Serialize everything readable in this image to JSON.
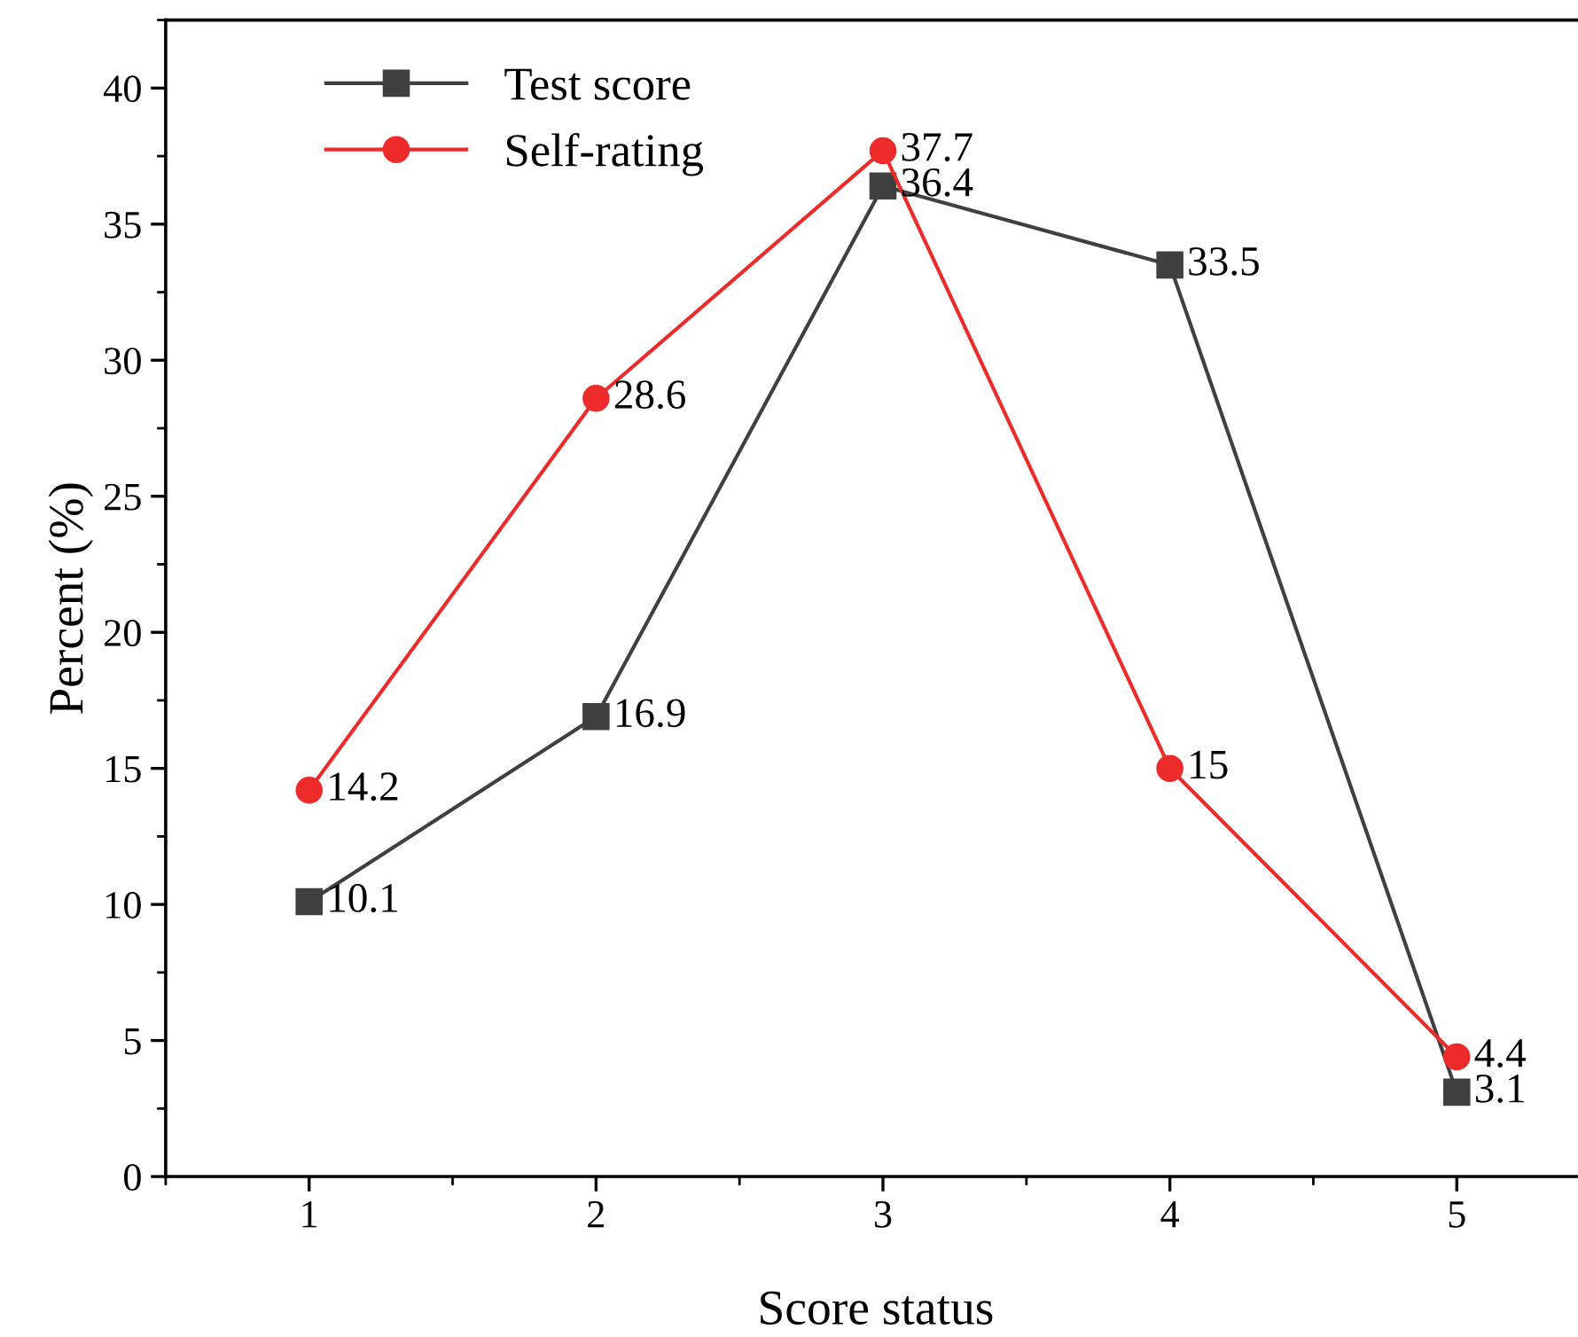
{
  "chart_data": {
    "type": "line",
    "xlabel": "Score status",
    "ylabel": "Percent (%)",
    "x": [
      1,
      2,
      3,
      4,
      5
    ],
    "series": [
      {
        "name": "Test score",
        "color": "#404040",
        "marker": "square",
        "values": [
          10.1,
          16.9,
          36.4,
          33.5,
          3.1
        ]
      },
      {
        "name": "Self-rating",
        "color": "#ee2b2b",
        "marker": "circle",
        "values": [
          14.2,
          28.6,
          37.7,
          15,
          4.4
        ]
      }
    ],
    "xlim": [
      0.5,
      5.45
    ],
    "xticks": [
      1,
      2,
      3,
      4,
      5
    ],
    "ylim": [
      0,
      42.5
    ],
    "yticks": [
      0,
      5,
      10,
      15,
      20,
      25,
      30,
      35,
      40
    ],
    "data_labels": true,
    "grid": false,
    "legend": "top left",
    "line_style": "solid"
  }
}
